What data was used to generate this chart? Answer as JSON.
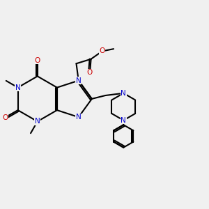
{
  "background_color": "#f0f0f0",
  "bond_color": "#000000",
  "n_color": "#0000cc",
  "o_color": "#cc0000",
  "line_width": 1.5,
  "figsize": [
    3.0,
    3.0
  ],
  "dpi": 100,
  "xlim": [
    -1.5,
    7.5
  ],
  "ylim": [
    -4.5,
    4.0
  ]
}
